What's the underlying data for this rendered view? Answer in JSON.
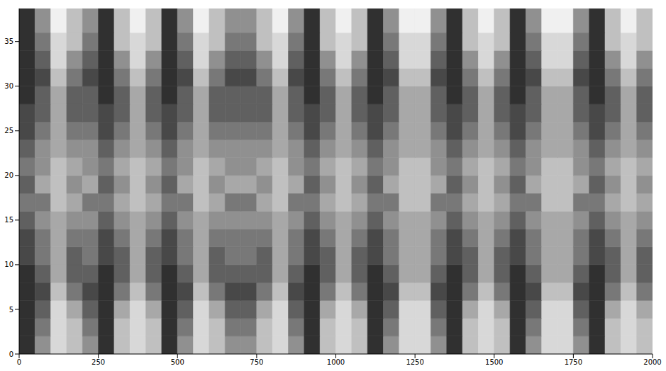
{
  "chart_data": {
    "type": "heatmap",
    "xlim": [
      0,
      2000
    ],
    "ylim": [
      0,
      38.7
    ],
    "xticks": [
      0,
      250,
      500,
      750,
      1000,
      1250,
      1500,
      1750,
      2000
    ],
    "yticks": [
      0,
      5,
      10,
      15,
      20,
      25,
      30,
      35
    ],
    "zlim": [
      0,
      9
    ],
    "x_bins": [
      0,
      50,
      100,
      150,
      200,
      250,
      300,
      350,
      400,
      450,
      500,
      550,
      600,
      650,
      700,
      750,
      800,
      850,
      900,
      950,
      1000,
      1050,
      1100,
      1150,
      1200,
      1250,
      1300,
      1350,
      1400,
      1450,
      1500,
      1550,
      1600,
      1650,
      1700,
      1750,
      1800,
      1850,
      1900,
      1950,
      2000
    ],
    "y_bins": [
      0,
      2,
      4,
      6,
      8,
      10,
      12,
      14,
      16,
      18,
      20,
      22,
      24,
      26,
      28,
      30,
      32,
      34,
      36,
      38.7
    ],
    "cells": [
      [
        1,
        5,
        8,
        7,
        5,
        1,
        7,
        8,
        7,
        1,
        5,
        8,
        7,
        5,
        5,
        7,
        8,
        5,
        1,
        7,
        8,
        7,
        1,
        5,
        8,
        8,
        5,
        1,
        7,
        8,
        7,
        1,
        5,
        8,
        8,
        5,
        1,
        7,
        8,
        7
      ],
      [
        1,
        4,
        8,
        7,
        4,
        1,
        7,
        8,
        7,
        1,
        4,
        8,
        7,
        4,
        4,
        7,
        8,
        4,
        1,
        7,
        8,
        7,
        1,
        4,
        8,
        8,
        4,
        1,
        7,
        8,
        7,
        1,
        4,
        8,
        8,
        4,
        1,
        7,
        8,
        7
      ],
      [
        1,
        3,
        8,
        6,
        3,
        1,
        6,
        8,
        6,
        1,
        3,
        8,
        6,
        3,
        3,
        6,
        8,
        3,
        1,
        6,
        8,
        6,
        1,
        3,
        8,
        8,
        3,
        1,
        6,
        8,
        6,
        1,
        3,
        8,
        8,
        3,
        1,
        6,
        8,
        6
      ],
      [
        1,
        2,
        7,
        4,
        2,
        1,
        4,
        7,
        4,
        1,
        2,
        7,
        4,
        2,
        2,
        4,
        7,
        2,
        1,
        4,
        7,
        4,
        1,
        2,
        7,
        7,
        2,
        1,
        4,
        7,
        4,
        1,
        2,
        7,
        7,
        2,
        1,
        4,
        7,
        4
      ],
      [
        1,
        3,
        6,
        3,
        3,
        1,
        3,
        6,
        3,
        1,
        3,
        6,
        3,
        3,
        3,
        3,
        6,
        3,
        1,
        3,
        6,
        3,
        1,
        3,
        6,
        6,
        3,
        1,
        3,
        6,
        3,
        1,
        3,
        6,
        6,
        3,
        1,
        3,
        6,
        3
      ],
      [
        2,
        4,
        6,
        3,
        4,
        2,
        3,
        6,
        3,
        2,
        4,
        6,
        3,
        4,
        4,
        3,
        6,
        4,
        2,
        3,
        6,
        3,
        2,
        4,
        6,
        6,
        4,
        2,
        3,
        6,
        3,
        2,
        4,
        6,
        6,
        4,
        2,
        3,
        6,
        3
      ],
      [
        2,
        4,
        6,
        4,
        4,
        2,
        4,
        6,
        4,
        2,
        4,
        6,
        4,
        4,
        4,
        4,
        6,
        4,
        2,
        4,
        6,
        4,
        2,
        4,
        6,
        6,
        4,
        2,
        4,
        6,
        4,
        2,
        4,
        6,
        6,
        4,
        2,
        4,
        6,
        4
      ],
      [
        3,
        5,
        6,
        5,
        5,
        3,
        5,
        6,
        5,
        3,
        5,
        6,
        5,
        5,
        5,
        5,
        6,
        5,
        3,
        5,
        6,
        5,
        3,
        5,
        6,
        6,
        5,
        3,
        5,
        6,
        5,
        3,
        5,
        6,
        6,
        5,
        3,
        5,
        6,
        5
      ],
      [
        4,
        4,
        7,
        6,
        4,
        4,
        6,
        7,
        6,
        4,
        4,
        7,
        6,
        4,
        4,
        6,
        7,
        4,
        4,
        6,
        7,
        6,
        4,
        4,
        7,
        7,
        4,
        4,
        6,
        7,
        6,
        4,
        4,
        7,
        7,
        4,
        4,
        6,
        7,
        6
      ],
      [
        3,
        6,
        7,
        5,
        6,
        3,
        5,
        7,
        5,
        3,
        6,
        7,
        5,
        6,
        6,
        5,
        7,
        6,
        3,
        5,
        7,
        5,
        3,
        6,
        7,
        7,
        6,
        3,
        5,
        7,
        5,
        3,
        6,
        7,
        7,
        6,
        3,
        5,
        7,
        5
      ],
      [
        4,
        5,
        7,
        6,
        5,
        4,
        6,
        7,
        6,
        4,
        5,
        7,
        6,
        5,
        5,
        6,
        7,
        5,
        4,
        6,
        7,
        6,
        4,
        5,
        7,
        7,
        5,
        4,
        6,
        7,
        6,
        4,
        5,
        7,
        7,
        5,
        4,
        6,
        7,
        6
      ],
      [
        3,
        5,
        6,
        5,
        5,
        3,
        5,
        6,
        5,
        3,
        5,
        6,
        5,
        5,
        5,
        5,
        6,
        5,
        3,
        5,
        6,
        5,
        3,
        5,
        6,
        6,
        5,
        3,
        5,
        6,
        5,
        3,
        5,
        6,
        6,
        5,
        3,
        5,
        6,
        5
      ],
      [
        2,
        4,
        6,
        4,
        4,
        2,
        4,
        6,
        4,
        2,
        4,
        6,
        4,
        4,
        4,
        4,
        6,
        4,
        2,
        4,
        6,
        4,
        2,
        4,
        6,
        6,
        4,
        2,
        4,
        6,
        4,
        2,
        4,
        6,
        6,
        4,
        2,
        4,
        6,
        4
      ],
      [
        2,
        3,
        6,
        3,
        3,
        2,
        3,
        6,
        3,
        2,
        3,
        6,
        3,
        3,
        3,
        3,
        6,
        3,
        2,
        3,
        6,
        3,
        2,
        3,
        6,
        6,
        3,
        2,
        3,
        6,
        3,
        2,
        3,
        6,
        6,
        3,
        2,
        3,
        6,
        3
      ],
      [
        1,
        3,
        6,
        3,
        3,
        1,
        3,
        6,
        3,
        1,
        3,
        6,
        3,
        3,
        3,
        3,
        6,
        3,
        1,
        3,
        6,
        3,
        1,
        3,
        6,
        6,
        3,
        1,
        3,
        6,
        3,
        1,
        3,
        6,
        6,
        3,
        1,
        3,
        6,
        3
      ],
      [
        1,
        2,
        7,
        4,
        2,
        1,
        4,
        7,
        4,
        1,
        2,
        7,
        4,
        2,
        2,
        4,
        7,
        2,
        1,
        4,
        7,
        4,
        1,
        2,
        7,
        7,
        2,
        1,
        4,
        7,
        4,
        1,
        2,
        7,
        7,
        2,
        1,
        4,
        7,
        4
      ],
      [
        1,
        3,
        8,
        5,
        3,
        1,
        5,
        8,
        5,
        1,
        3,
        8,
        5,
        3,
        3,
        5,
        8,
        3,
        1,
        5,
        8,
        5,
        1,
        3,
        8,
        8,
        3,
        1,
        5,
        8,
        5,
        1,
        3,
        8,
        8,
        3,
        1,
        5,
        8,
        5
      ],
      [
        1,
        4,
        8,
        7,
        4,
        1,
        7,
        8,
        7,
        1,
        4,
        8,
        7,
        4,
        4,
        7,
        8,
        4,
        1,
        7,
        8,
        7,
        1,
        4,
        8,
        8,
        4,
        1,
        7,
        8,
        7,
        1,
        4,
        8,
        8,
        4,
        1,
        7,
        8,
        7
      ],
      [
        1,
        5,
        9,
        7,
        5,
        1,
        7,
        9,
        7,
        1,
        5,
        9,
        7,
        5,
        5,
        7,
        9,
        5,
        1,
        7,
        9,
        7,
        1,
        5,
        9,
        9,
        5,
        1,
        7,
        9,
        7,
        1,
        5,
        9,
        9,
        5,
        1,
        7,
        9,
        7
      ]
    ]
  }
}
